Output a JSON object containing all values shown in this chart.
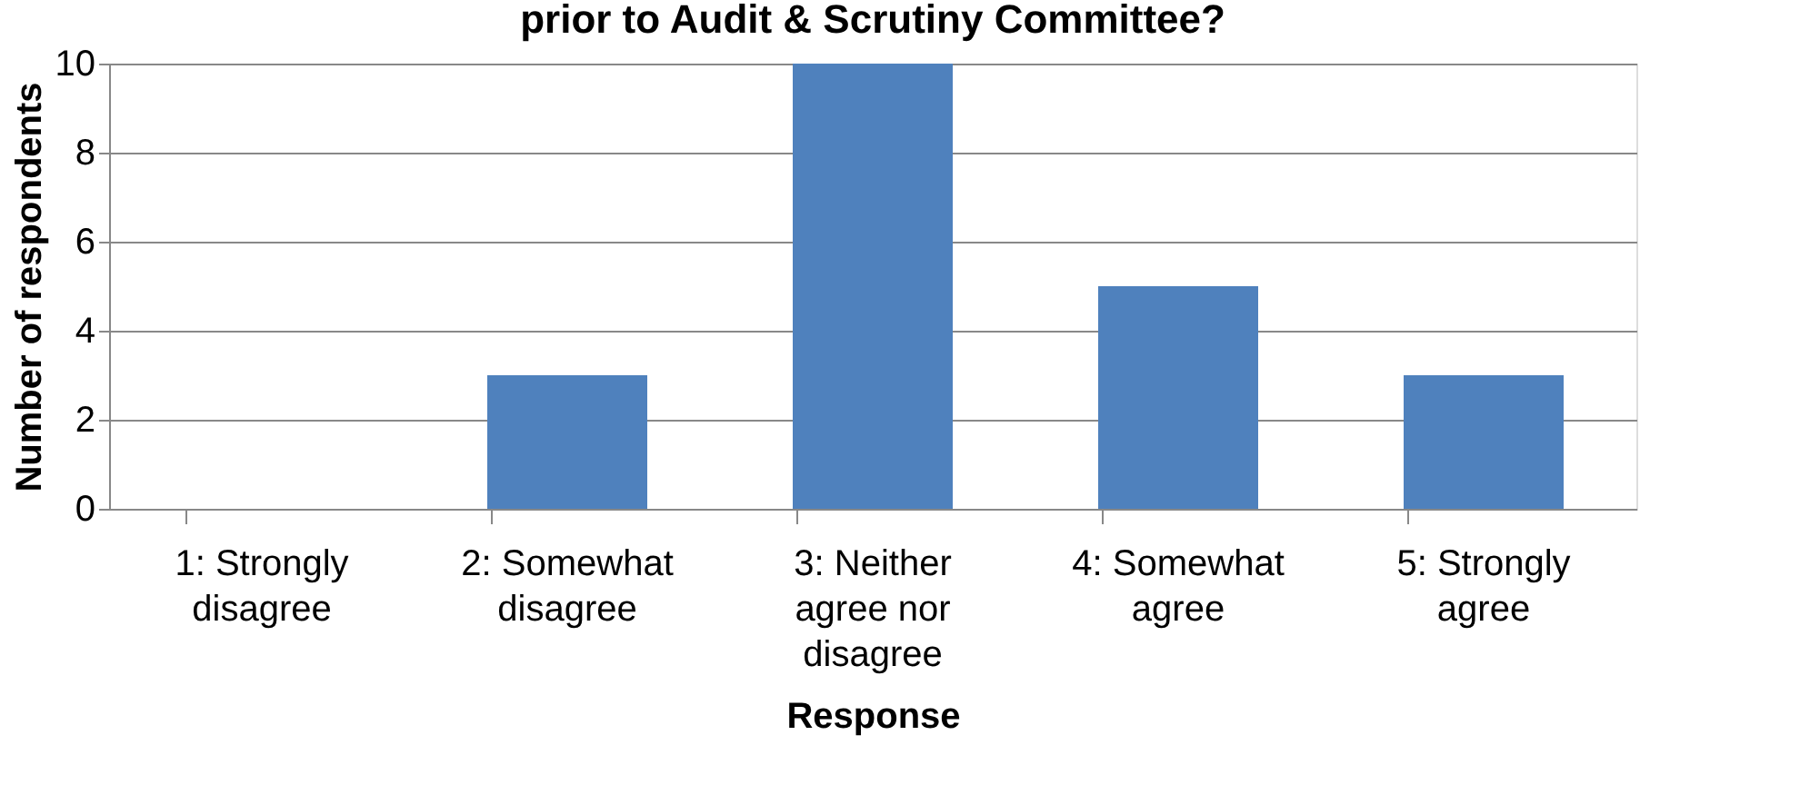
{
  "chart_data": {
    "type": "bar",
    "title": "prior to Audit & Scrutiny Committee?",
    "xlabel": "Response",
    "ylabel": "Number of respondents",
    "categories": [
      "1: Strongly disagree",
      "2: Somewhat disagree",
      "3: Neither agree nor disagree",
      "4: Somewhat agree",
      "5: Strongly agree"
    ],
    "values": [
      0,
      3,
      10,
      5,
      3
    ],
    "color": "#4f81bd",
    "ylim": [
      0,
      10
    ],
    "yticks": [
      0,
      2,
      4,
      6,
      8,
      10
    ],
    "grid": "y"
  }
}
